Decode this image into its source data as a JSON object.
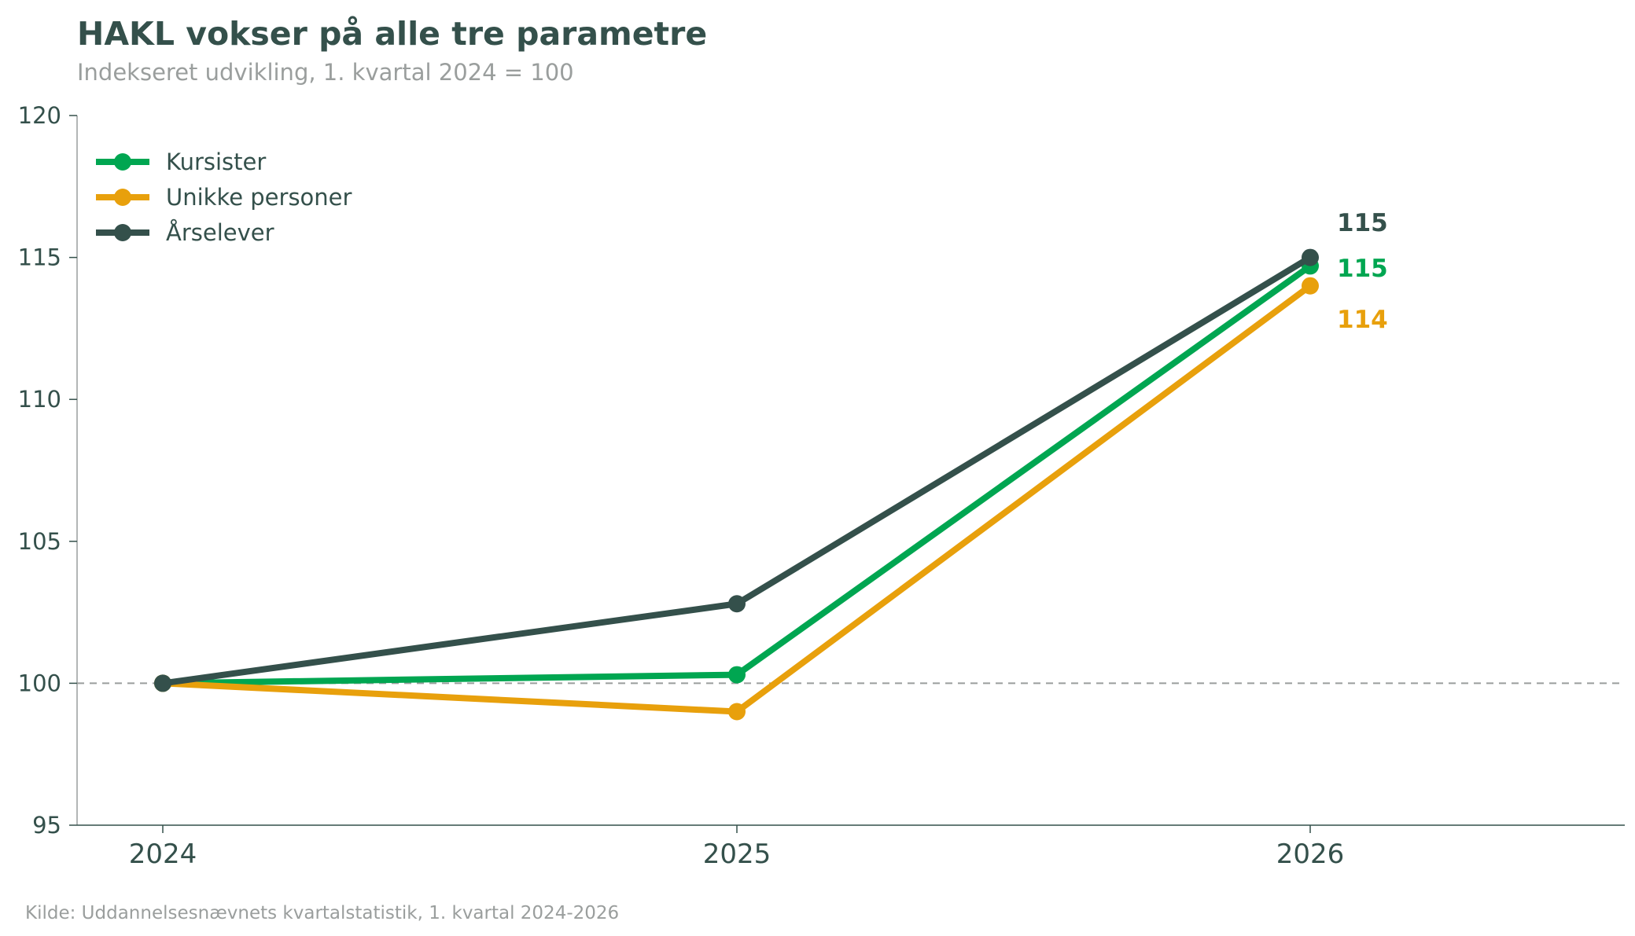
{
  "chart_data": {
    "type": "line",
    "title": "HAKL vokser på alle tre parametre",
    "subtitle": "Indekseret udvikling, 1. kvartal 2024 = 100",
    "source": "Kilde: Uddannelsesnævnets kvartalstatistik, 1. kvartal 2024-2026",
    "x": [
      "2024",
      "2025",
      "2026"
    ],
    "ylim": [
      95,
      120
    ],
    "yticks": [
      95,
      100,
      105,
      110,
      115,
      120
    ],
    "reference_line": 100,
    "grid": false,
    "legend_position": "top-left",
    "series": [
      {
        "name": "Kursister",
        "values": [
          100,
          100.3,
          114.7
        ],
        "end_label": "115",
        "color": "#00a651"
      },
      {
        "name": "Unikke personer",
        "values": [
          100,
          99.0,
          114.0
        ],
        "end_label": "114",
        "color": "#e8a00c"
      },
      {
        "name": "Årselever",
        "values": [
          100,
          102.8,
          115.0
        ],
        "end_label": "115",
        "color": "#34504b"
      }
    ]
  }
}
